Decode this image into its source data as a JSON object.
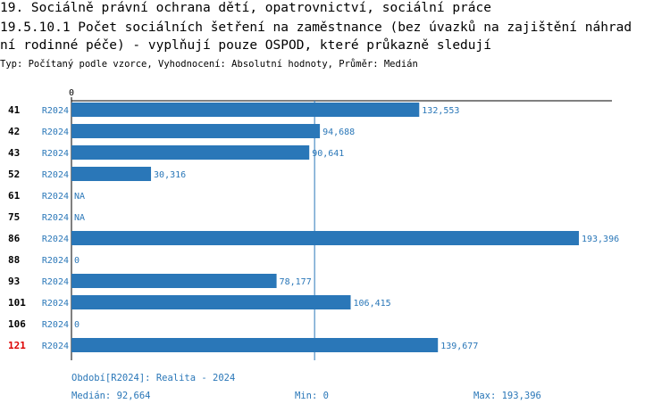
{
  "header": {
    "line1": "19. Sociálně právní ochrana dětí, opatrovnictví, sociální práce",
    "line2": "19.5.10.1 Počet sociálních šetření na zaměstnance (bez úvazků na zajištění náhrad",
    "line3": "ní rodinné péče) - vyplňují pouze OSPOD, které průkazně sledují",
    "subtitle": "Typ: Počítaný podle vzorce, Vyhodnocení: Absolutní hodnoty, Průměr: Medián"
  },
  "chart_data": {
    "type": "bar",
    "orientation": "horizontal",
    "axis_zero_label": "0",
    "series_label": "R2024",
    "categories": [
      "41",
      "42",
      "43",
      "52",
      "61",
      "75",
      "86",
      "88",
      "93",
      "101",
      "106",
      "121"
    ],
    "values": [
      132553,
      94688,
      90641,
      30316,
      null,
      null,
      193396,
      0,
      78177,
      106415,
      0,
      139677
    ],
    "value_labels": [
      "132,553",
      "94,688",
      "90,641",
      "30,316",
      "NA",
      "NA",
      "193,396",
      "0",
      "78,177",
      "106,415",
      "0",
      "139,677"
    ],
    "highlighted_category": "121",
    "median": 92664,
    "xlim": [
      0,
      206000
    ],
    "colors": {
      "bar": "#2a77b8",
      "highlight": "#dd0000",
      "text_blue": "#2a77b8"
    }
  },
  "footer": {
    "period": "Období[R2024]: Realita - 2024",
    "median": "Medián: 92,664",
    "min": "Min: 0",
    "max": "Max: 193,396"
  }
}
